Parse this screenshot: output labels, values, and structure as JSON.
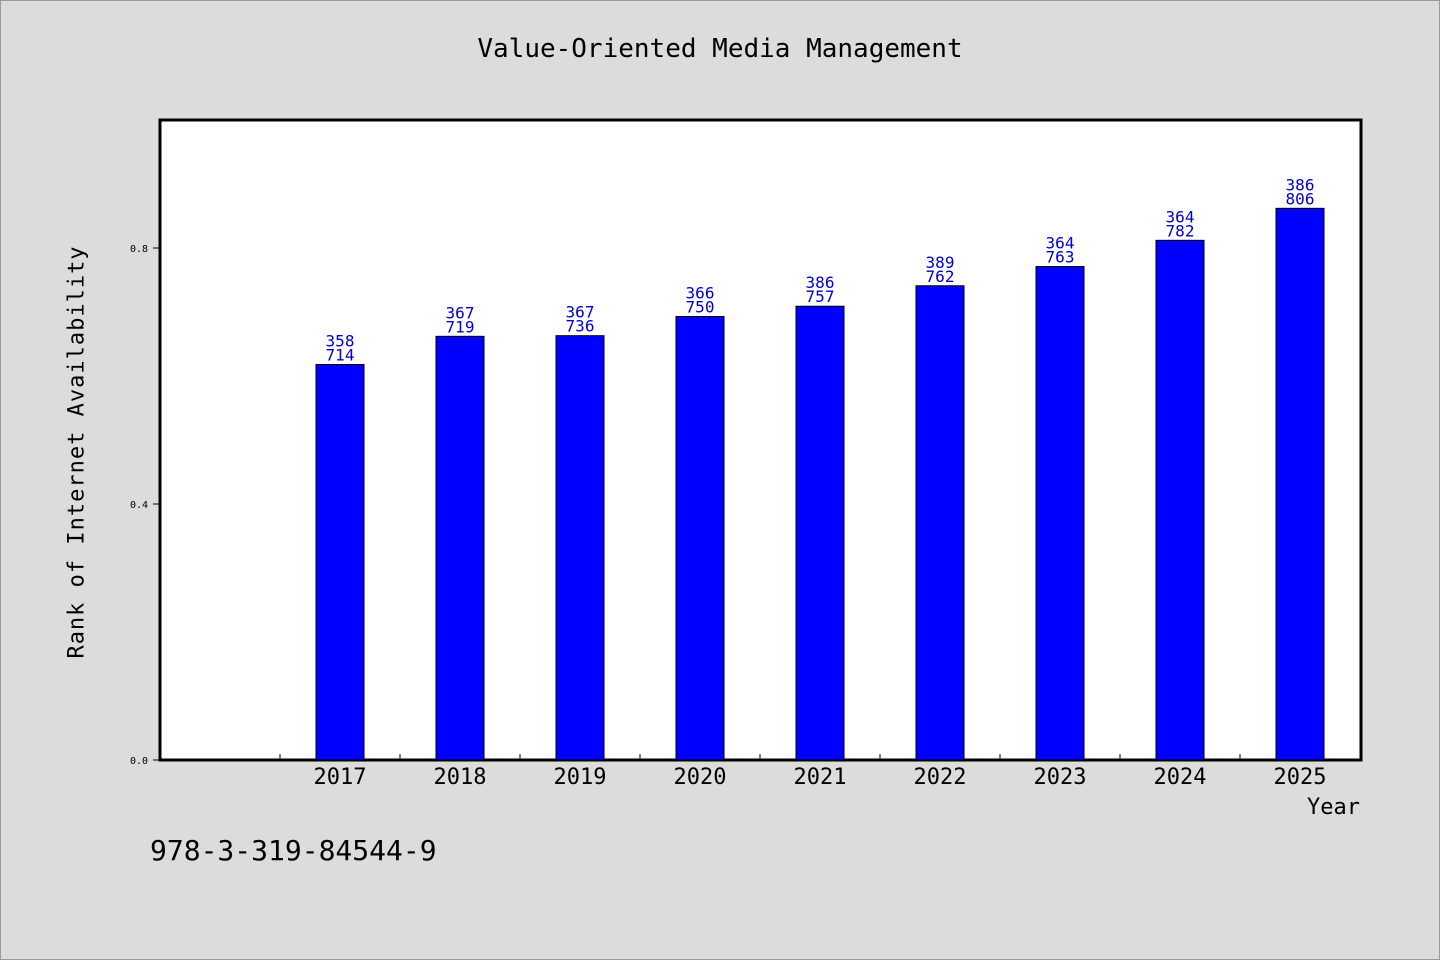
{
  "title": "Value-Oriented Media Management",
  "footer_code": "978-3-319-84544-9",
  "colors": {
    "background": "#dcdcdc",
    "plot_background": "#ffffff",
    "bar_fill": "#0000ff",
    "label_color": "#0000cc"
  },
  "chart_data": {
    "type": "bar",
    "title": "Value-Oriented Media Management",
    "xlabel": "Year",
    "ylabel": "Rank of Internet Availability",
    "categories": [
      "2017",
      "2018",
      "2019",
      "2020",
      "2021",
      "2022",
      "2023",
      "2024",
      "2025"
    ],
    "values": [
      0.618,
      0.662,
      0.663,
      0.693,
      0.709,
      0.741,
      0.771,
      0.812,
      0.862
    ],
    "bar_labels": [
      [
        "358",
        "714"
      ],
      [
        "367",
        "719"
      ],
      [
        "367",
        "736"
      ],
      [
        "366",
        "750"
      ],
      [
        "386",
        "757"
      ],
      [
        "389",
        "762"
      ],
      [
        "364",
        "763"
      ],
      [
        "364",
        "782"
      ],
      [
        "386",
        "806"
      ]
    ],
    "yticks": [
      "0.0",
      "0.4",
      "0.8"
    ],
    "ytick_values": [
      0.0,
      0.4,
      0.8
    ],
    "ylim": [
      0.0,
      1.0
    ],
    "grid": false,
    "legend": "none"
  }
}
